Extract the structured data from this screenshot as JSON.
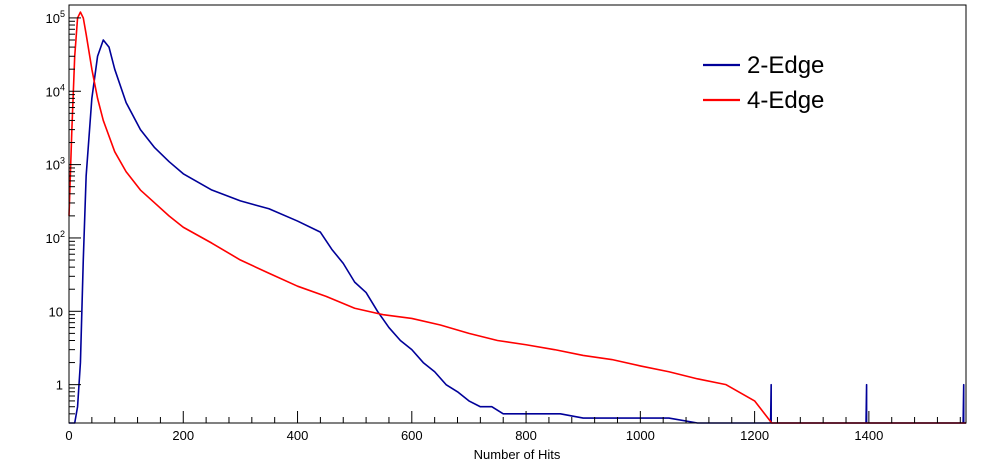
{
  "chart_data": {
    "type": "line",
    "title": "",
    "xlabel": "Number of Hits",
    "ylabel": "",
    "xlim": [
      0,
      1570
    ],
    "ylim": [
      0.3,
      150000
    ],
    "y_scale": "log",
    "grid": false,
    "legend_position": "top-right",
    "x_ticks": [
      {
        "value": 0,
        "label": "0"
      },
      {
        "value": 200,
        "label": "200"
      },
      {
        "value": 400,
        "label": "400"
      },
      {
        "value": 600,
        "label": "600"
      },
      {
        "value": 800,
        "label": "800"
      },
      {
        "value": 1000,
        "label": "1000"
      },
      {
        "value": 1200,
        "label": "1200"
      },
      {
        "value": 1400,
        "label": "1400"
      }
    ],
    "y_ticks": [
      {
        "value": 1,
        "base": "1",
        "exp": ""
      },
      {
        "value": 10,
        "base": "10",
        "exp": ""
      },
      {
        "value": 100,
        "base": "10",
        "exp": "2"
      },
      {
        "value": 1000,
        "base": "10",
        "exp": "3"
      },
      {
        "value": 10000,
        "base": "10",
        "exp": "4"
      },
      {
        "value": 100000,
        "base": "10",
        "exp": "5"
      }
    ],
    "series": [
      {
        "name": "2-Edge",
        "color": "#000099",
        "x": [
          0,
          10,
          15,
          20,
          25,
          30,
          40,
          50,
          60,
          70,
          80,
          100,
          125,
          150,
          175,
          200,
          250,
          300,
          350,
          400,
          440,
          460,
          480,
          500,
          520,
          540,
          560,
          580,
          600,
          620,
          640,
          660,
          680,
          700,
          720,
          740,
          760,
          780,
          800,
          830,
          860,
          900,
          950,
          1000,
          1050,
          1100,
          1150,
          1200,
          1228,
          1229,
          1229,
          1230,
          1395,
          1396,
          1396,
          1397,
          1565,
          1566,
          1566,
          1567,
          1570
        ],
        "values": [
          0.3,
          0.3,
          0.5,
          2,
          50,
          700,
          8000,
          30000,
          50000,
          40000,
          20000,
          7000,
          3000,
          1700,
          1100,
          750,
          450,
          320,
          250,
          170,
          120,
          70,
          45,
          25,
          18,
          10,
          6,
          4,
          3,
          2,
          1.5,
          1,
          0.8,
          0.6,
          0.5,
          0.5,
          0.4,
          0.4,
          0.4,
          0.4,
          0.4,
          0.35,
          0.35,
          0.35,
          0.35,
          0.3,
          0.3,
          0.3,
          0.3,
          1,
          0.3,
          0.3,
          0.3,
          1,
          0.3,
          0.3,
          0.3,
          1,
          0.3,
          0.3,
          0.3
        ]
      },
      {
        "name": "4-Edge",
        "color": "#ff0000",
        "x": [
          0,
          5,
          10,
          15,
          20,
          25,
          30,
          40,
          50,
          60,
          80,
          100,
          125,
          150,
          175,
          200,
          250,
          300,
          350,
          400,
          450,
          500,
          550,
          600,
          650,
          700,
          750,
          800,
          850,
          900,
          950,
          1000,
          1050,
          1100,
          1150,
          1200,
          1230,
          1570
        ],
        "values": [
          200,
          3000,
          30000,
          100000,
          120000,
          100000,
          60000,
          20000,
          8000,
          4000,
          1500,
          800,
          450,
          300,
          200,
          140,
          85,
          50,
          33,
          22,
          16,
          11,
          9,
          8,
          6.5,
          5,
          4,
          3.5,
          3,
          2.5,
          2.2,
          1.8,
          1.5,
          1.2,
          1,
          0.6,
          0.3,
          0.3
        ]
      }
    ]
  }
}
